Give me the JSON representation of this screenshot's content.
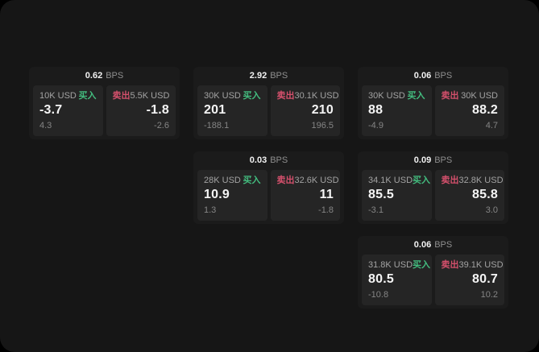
{
  "colors": {
    "buy_green": "#43bd7f",
    "sell_red": "#d4506c",
    "page_background": "#161616",
    "card_background": "#1b1b1b",
    "panel_background": "#252525"
  },
  "cards": [
    {
      "bps_value": "0.62",
      "bps_unit": "BPS",
      "buy": {
        "notional": "10K USD",
        "side_label": "买入",
        "price": "-3.7",
        "delta": "4.3"
      },
      "sell": {
        "side_label": "卖出",
        "notional": "5.5K USD",
        "price": "-1.8",
        "delta": "-2.6"
      }
    },
    {
      "bps_value": "2.92",
      "bps_unit": "BPS",
      "buy": {
        "notional": "30K USD",
        "side_label": "买入",
        "price": "201",
        "delta": "-188.1"
      },
      "sell": {
        "side_label": "卖出",
        "notional": "30.1K USD",
        "price": "210",
        "delta": "196.5"
      }
    },
    {
      "bps_value": "0.06",
      "bps_unit": "BPS",
      "buy": {
        "notional": "30K USD",
        "side_label": "买入",
        "price": "88",
        "delta": "-4.9"
      },
      "sell": {
        "side_label": "卖出",
        "notional": "30K USD",
        "price": "88.2",
        "delta": "4.7"
      }
    },
    {
      "bps_value": "0.03",
      "bps_unit": "BPS",
      "buy": {
        "notional": "28K USD",
        "side_label": "买入",
        "price": "10.9",
        "delta": "1.3"
      },
      "sell": {
        "side_label": "卖出",
        "notional": "32.6K USD",
        "price": "11",
        "delta": "-1.8"
      }
    },
    {
      "bps_value": "0.09",
      "bps_unit": "BPS",
      "buy": {
        "notional": "34.1K USD",
        "side_label": "买入",
        "price": "85.5",
        "delta": "-3.1"
      },
      "sell": {
        "side_label": "卖出",
        "notional": "32.8K USD",
        "price": "85.8",
        "delta": "3.0"
      }
    },
    {
      "bps_value": "0.06",
      "bps_unit": "BPS",
      "buy": {
        "notional": "31.8K USD",
        "side_label": "买入",
        "price": "80.5",
        "delta": "-10.8"
      },
      "sell": {
        "side_label": "卖出",
        "notional": "39.1K USD",
        "price": "80.7",
        "delta": "10.2"
      }
    }
  ]
}
